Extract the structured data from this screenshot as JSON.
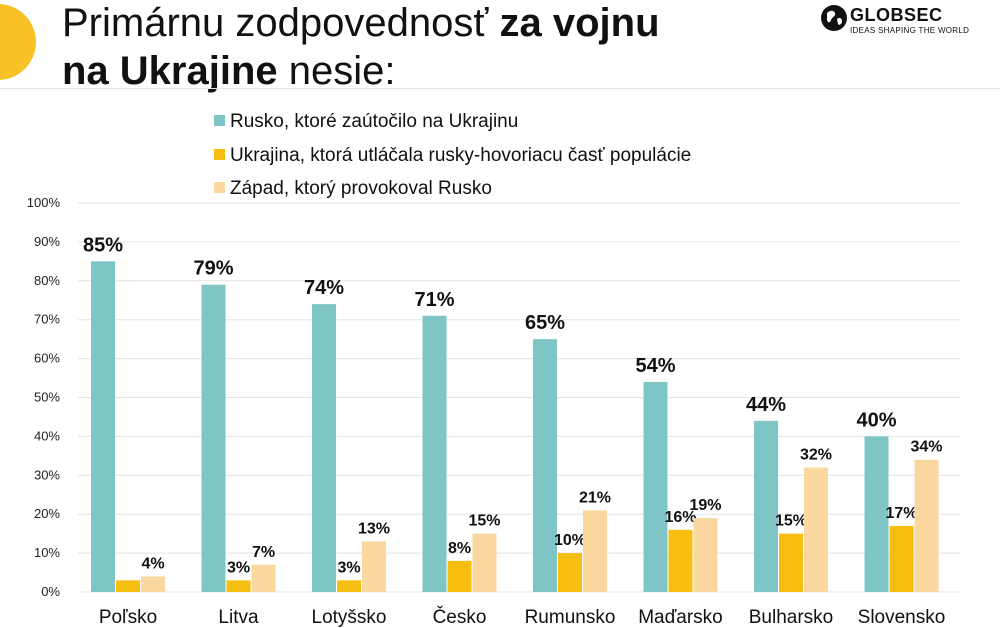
{
  "title": {
    "line1_regular": "Primárnu zodpovednosť",
    "line1_bold": "za vojnu",
    "line2_bold": "na Ukrajine",
    "line2_regular": "nesie:"
  },
  "logo": {
    "name": "GLOBSEC",
    "tagline": "IDEAS SHAPING THE WORLD"
  },
  "colors": {
    "accent_circle": "#f8c227",
    "russia": "#80c5c6",
    "ukraine": "#f7be12",
    "west": "#fad8a0"
  },
  "chart_data": {
    "type": "bar",
    "categories": [
      "Poľsko",
      "Litva",
      "Lotyšsko",
      "Česko",
      "Rumunsko",
      "Maďarsko",
      "Bulharsko",
      "Slovensko"
    ],
    "series": [
      {
        "name": "Rusko, ktoré zaútočilo na Ukrajinu",
        "values": [
          85,
          79,
          74,
          71,
          65,
          54,
          44,
          40
        ]
      },
      {
        "name": "Ukrajina, ktorá utláčala rusky-hovoriacu časť populácie",
        "values": [
          3,
          3,
          3,
          8,
          10,
          16,
          15,
          17
        ]
      },
      {
        "name": "Západ, ktorý provokoval Rusko",
        "values": [
          4,
          7,
          13,
          15,
          21,
          19,
          32,
          34
        ]
      }
    ],
    "data_labels": [
      [
        "85%",
        "79%",
        "74%",
        "71%",
        "65%",
        "54%",
        "44%",
        "40%"
      ],
      [
        "",
        "3%",
        "3%",
        "8%",
        "10%",
        "16%",
        "15%",
        "17%"
      ],
      [
        "4%",
        "7%",
        "13%",
        "15%",
        "21%",
        "19%",
        "32%",
        "34%"
      ]
    ],
    "yticks": [
      "0%",
      "10%",
      "20%",
      "30%",
      "40%",
      "50%",
      "60%",
      "70%",
      "80%",
      "90%",
      "100%"
    ],
    "ylim": [
      0,
      100
    ],
    "xlabel": "",
    "ylabel": "",
    "grid": true,
    "legend_position": "top"
  }
}
